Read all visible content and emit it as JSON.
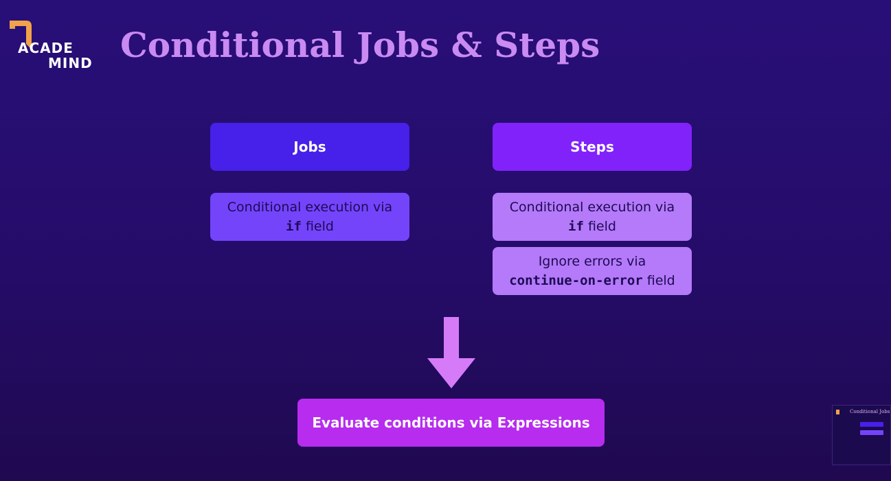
{
  "logo": {
    "line1": "ACADE",
    "line2": "MIND"
  },
  "title": "Conditional Jobs & Steps",
  "jobs": {
    "header": "Jobs",
    "items": [
      {
        "before": "Conditional execution via",
        "code": "if",
        "after": " field"
      }
    ]
  },
  "steps": {
    "header": "Steps",
    "items": [
      {
        "before": "Conditional execution via",
        "code": "if",
        "after": " field"
      },
      {
        "before": "Ignore errors via",
        "code": "continue-on-error",
        "after": " field"
      }
    ]
  },
  "result": "Evaluate conditions via Expressions",
  "thumbnail": {
    "title": "Conditional Jobs & St"
  },
  "colors": {
    "title": "#c98af2",
    "jobs_header": "#4720e9",
    "steps_header": "#8122fb",
    "jobs_item": "#7444fb",
    "steps_item": "#b47af9",
    "arrow": "#d67bf7",
    "result": "#b72cef"
  }
}
